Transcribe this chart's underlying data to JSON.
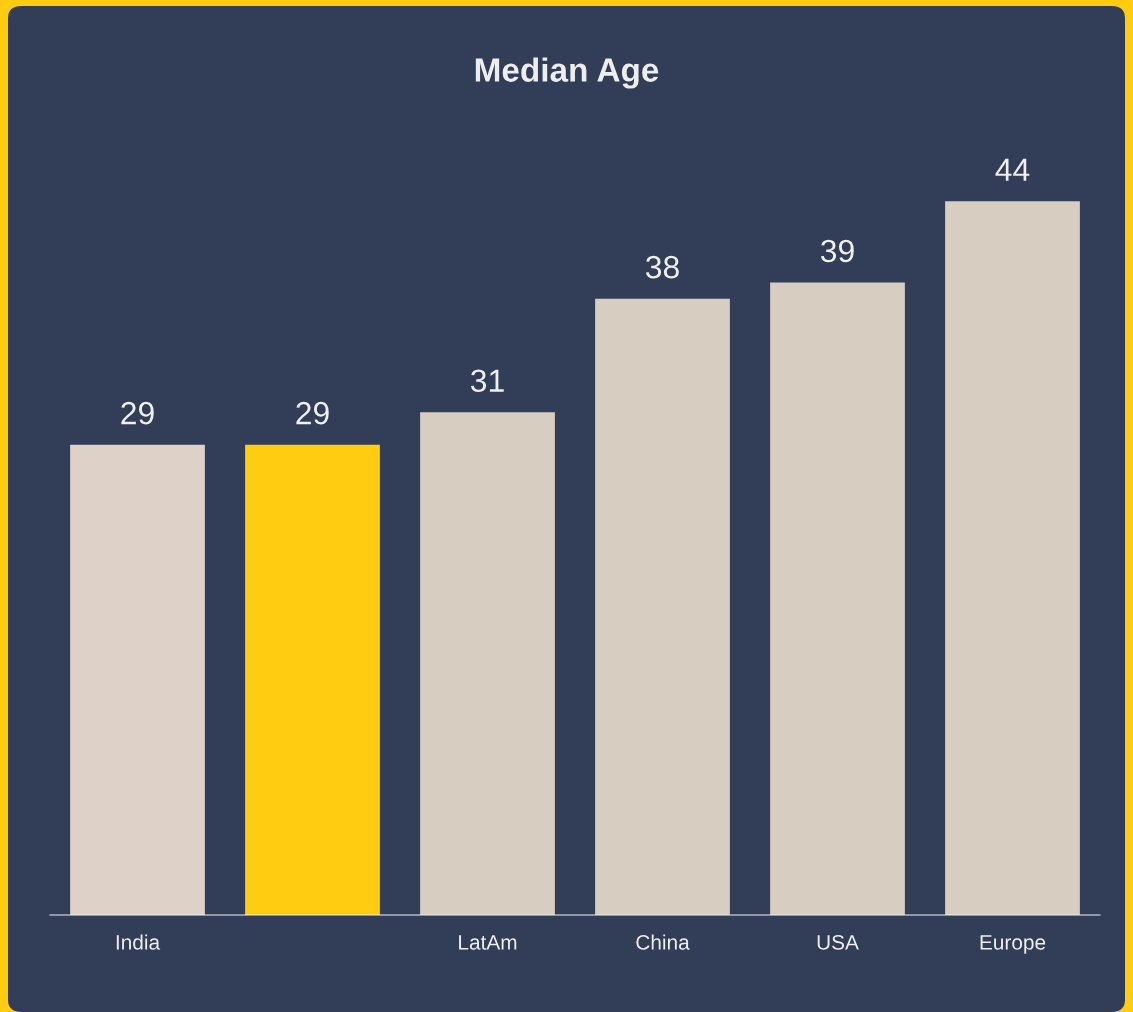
{
  "chart_data": {
    "type": "bar",
    "title": "Median Age",
    "categories": [
      "India",
      null,
      "LatAm",
      "China",
      "USA",
      "Europe"
    ],
    "values": [
      29,
      29,
      31,
      38,
      39,
      44
    ],
    "colors": [
      "#ded1c7",
      "#ffcc11",
      "#d8cdc1",
      "#d8cdc1",
      "#d8cdc1",
      "#d8cdc1"
    ],
    "data_labels": true,
    "grid": false,
    "legend": false
  }
}
